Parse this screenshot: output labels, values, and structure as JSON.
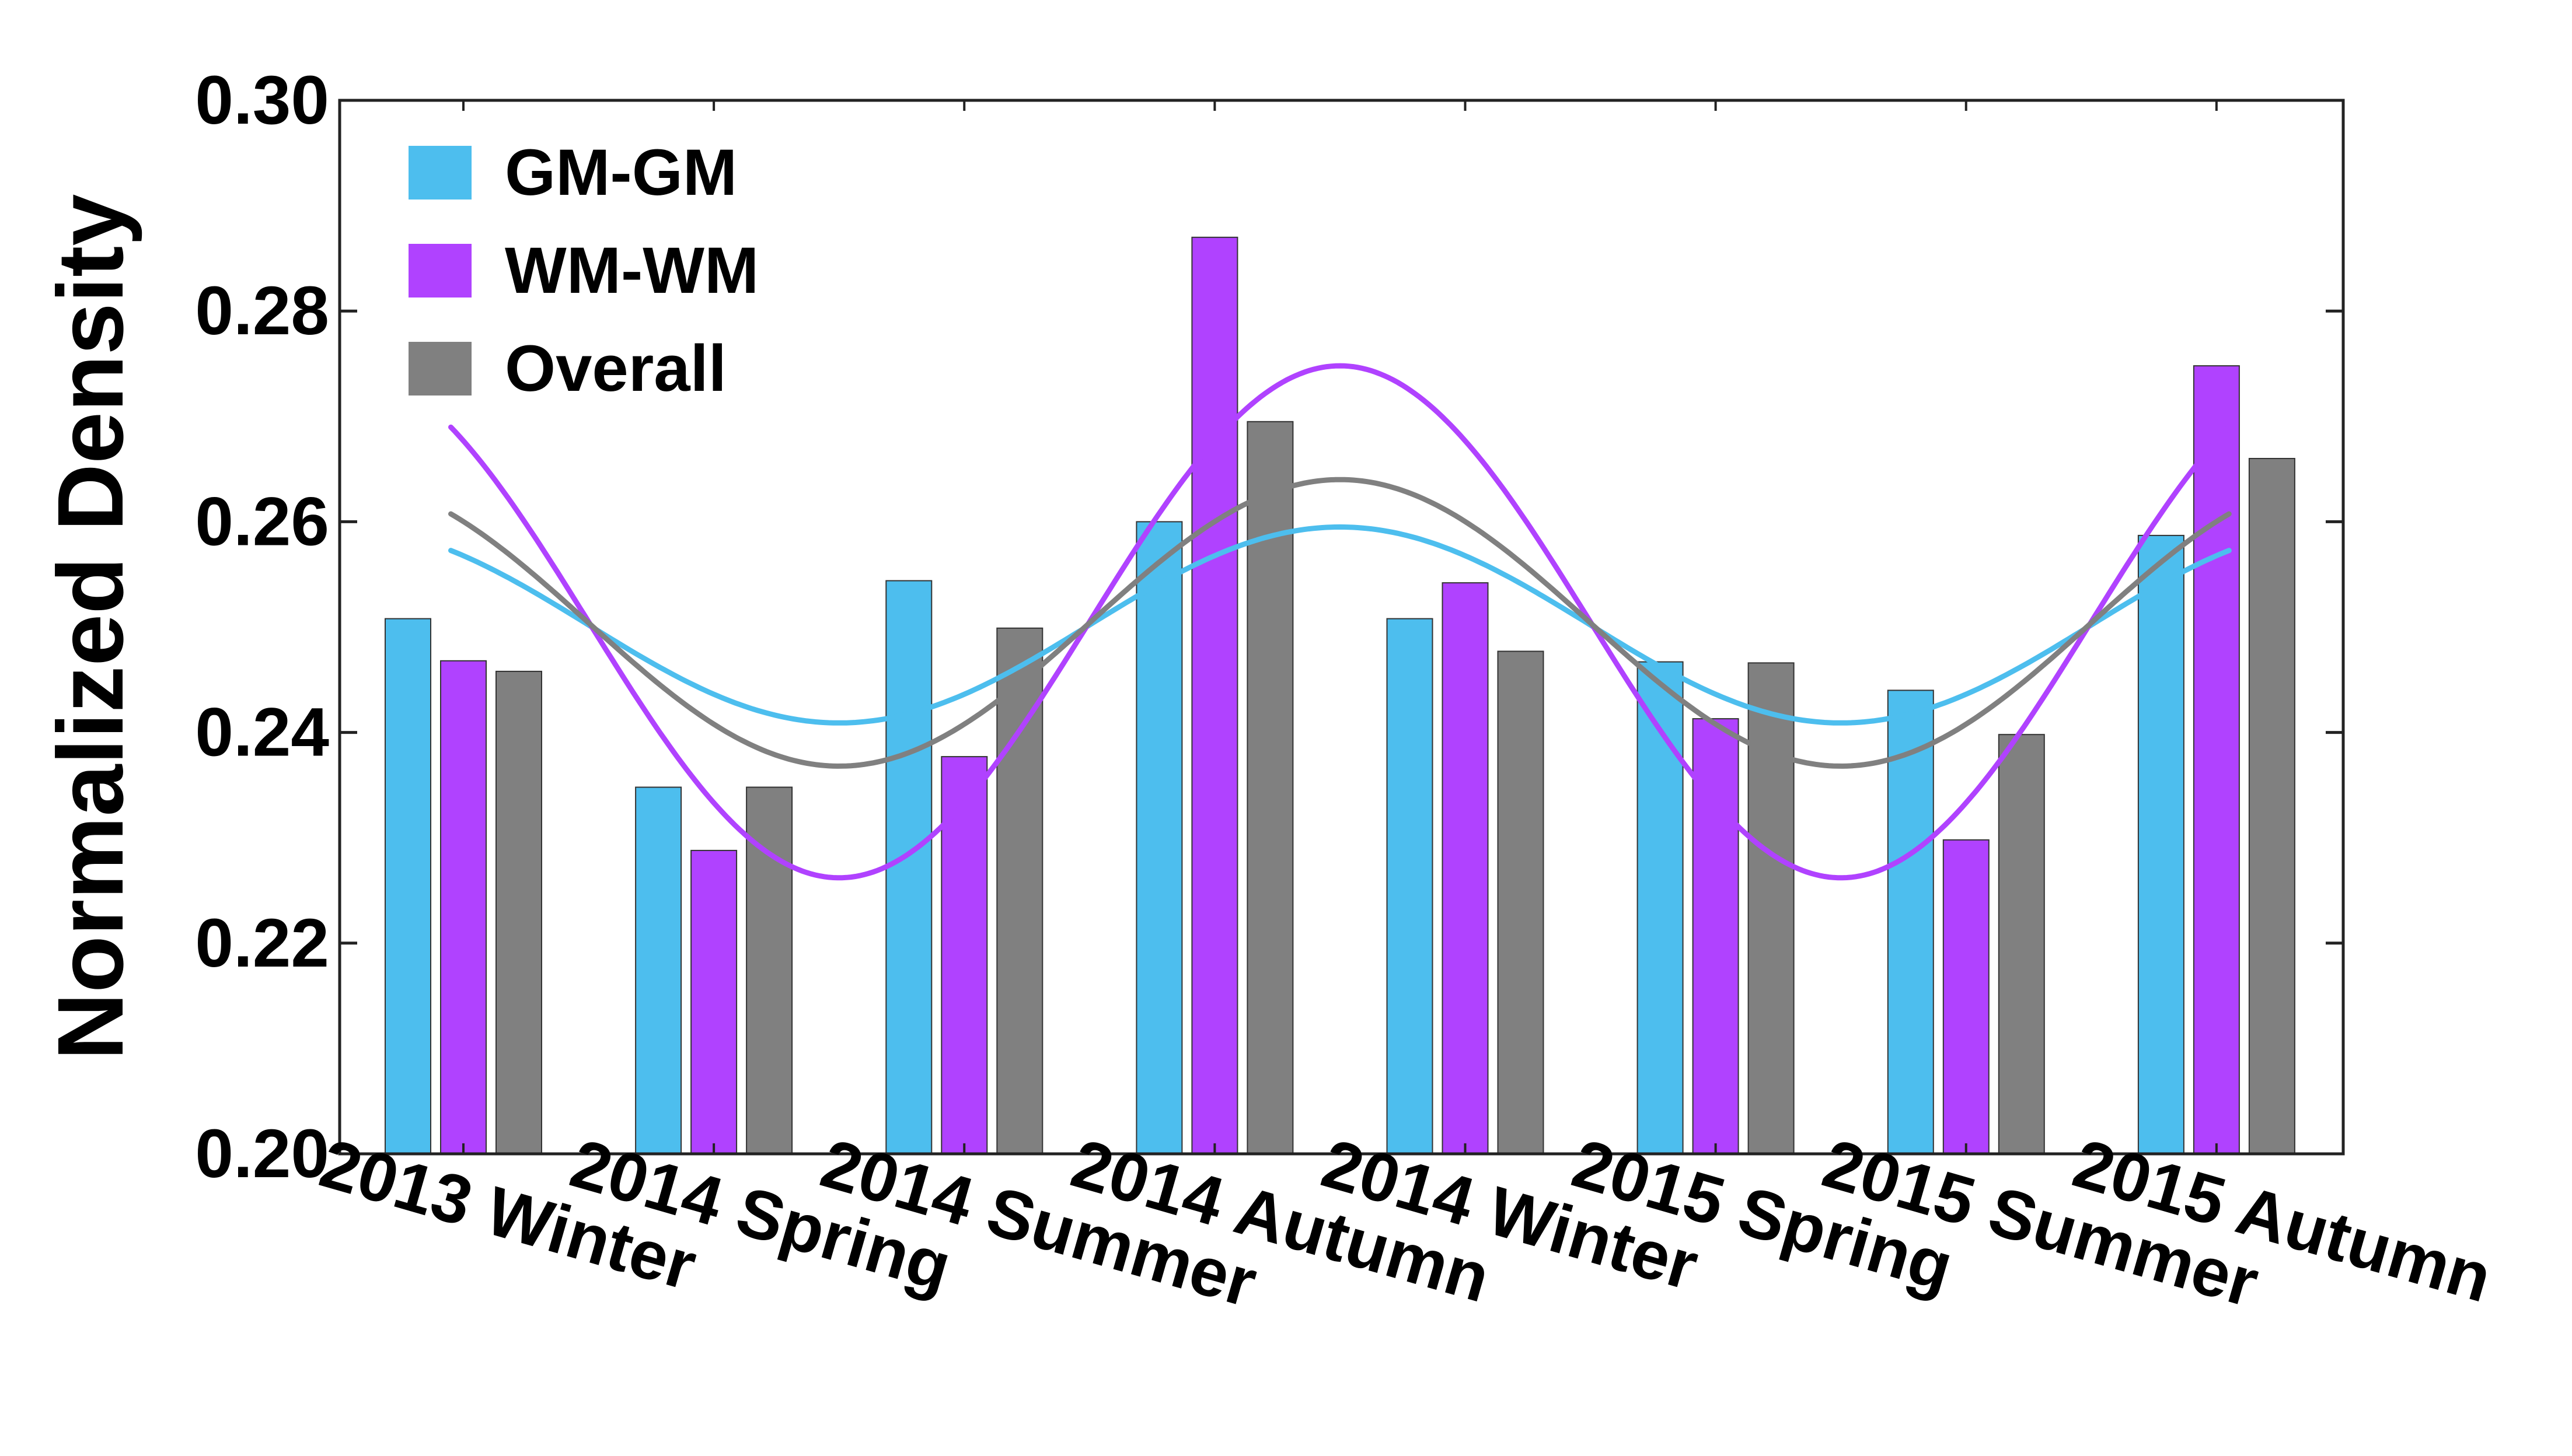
{
  "chart_data": {
    "type": "bar",
    "title": "",
    "xlabel": "",
    "ylabel": "Normalized Density",
    "ylim": [
      0.2,
      0.3
    ],
    "yticks": [
      0.2,
      0.22,
      0.24,
      0.26,
      0.28,
      0.3
    ],
    "ytick_labels": [
      "0.20",
      "0.22",
      "0.24",
      "0.26",
      "0.28",
      "0.30"
    ],
    "grid": false,
    "legend_position": "top-left",
    "categories": [
      "2013 Winter",
      "2014 Spring",
      "2014 Summer",
      "2014 Autumn",
      "2014 Winter",
      "2015 Spring",
      "2015 Summer",
      "2015 Autumn"
    ],
    "series": [
      {
        "name": "GM-GM",
        "color": "#4DBEEE",
        "values": [
          0.2508,
          0.2348,
          0.2544,
          0.26,
          0.2508,
          0.2467,
          0.244,
          0.2587
        ]
      },
      {
        "name": "WM-WM",
        "color": "#B042FF",
        "values": [
          0.2468,
          0.2288,
          0.2377,
          0.287,
          0.2542,
          0.2413,
          0.2298,
          0.2748
        ]
      },
      {
        "name": "Overall",
        "color": "#808080",
        "values": [
          0.2458,
          0.2348,
          0.2499,
          0.2695,
          0.2477,
          0.2466,
          0.2398,
          0.266
        ]
      }
    ],
    "trend_lines": [
      {
        "name": "GM-GM fit",
        "color": "#4DBEEE",
        "mean": 0.2502,
        "amplitude": 0.0093,
        "phase_peak_index": 3.5,
        "period": 4
      },
      {
        "name": "WM-WM fit",
        "color": "#B042FF",
        "mean": 0.2505,
        "amplitude": 0.0243,
        "phase_peak_index": 3.5,
        "period": 4
      },
      {
        "name": "Overall fit",
        "color": "#808080",
        "mean": 0.2504,
        "amplitude": 0.0136,
        "phase_peak_index": 3.5,
        "period": 4
      }
    ]
  }
}
